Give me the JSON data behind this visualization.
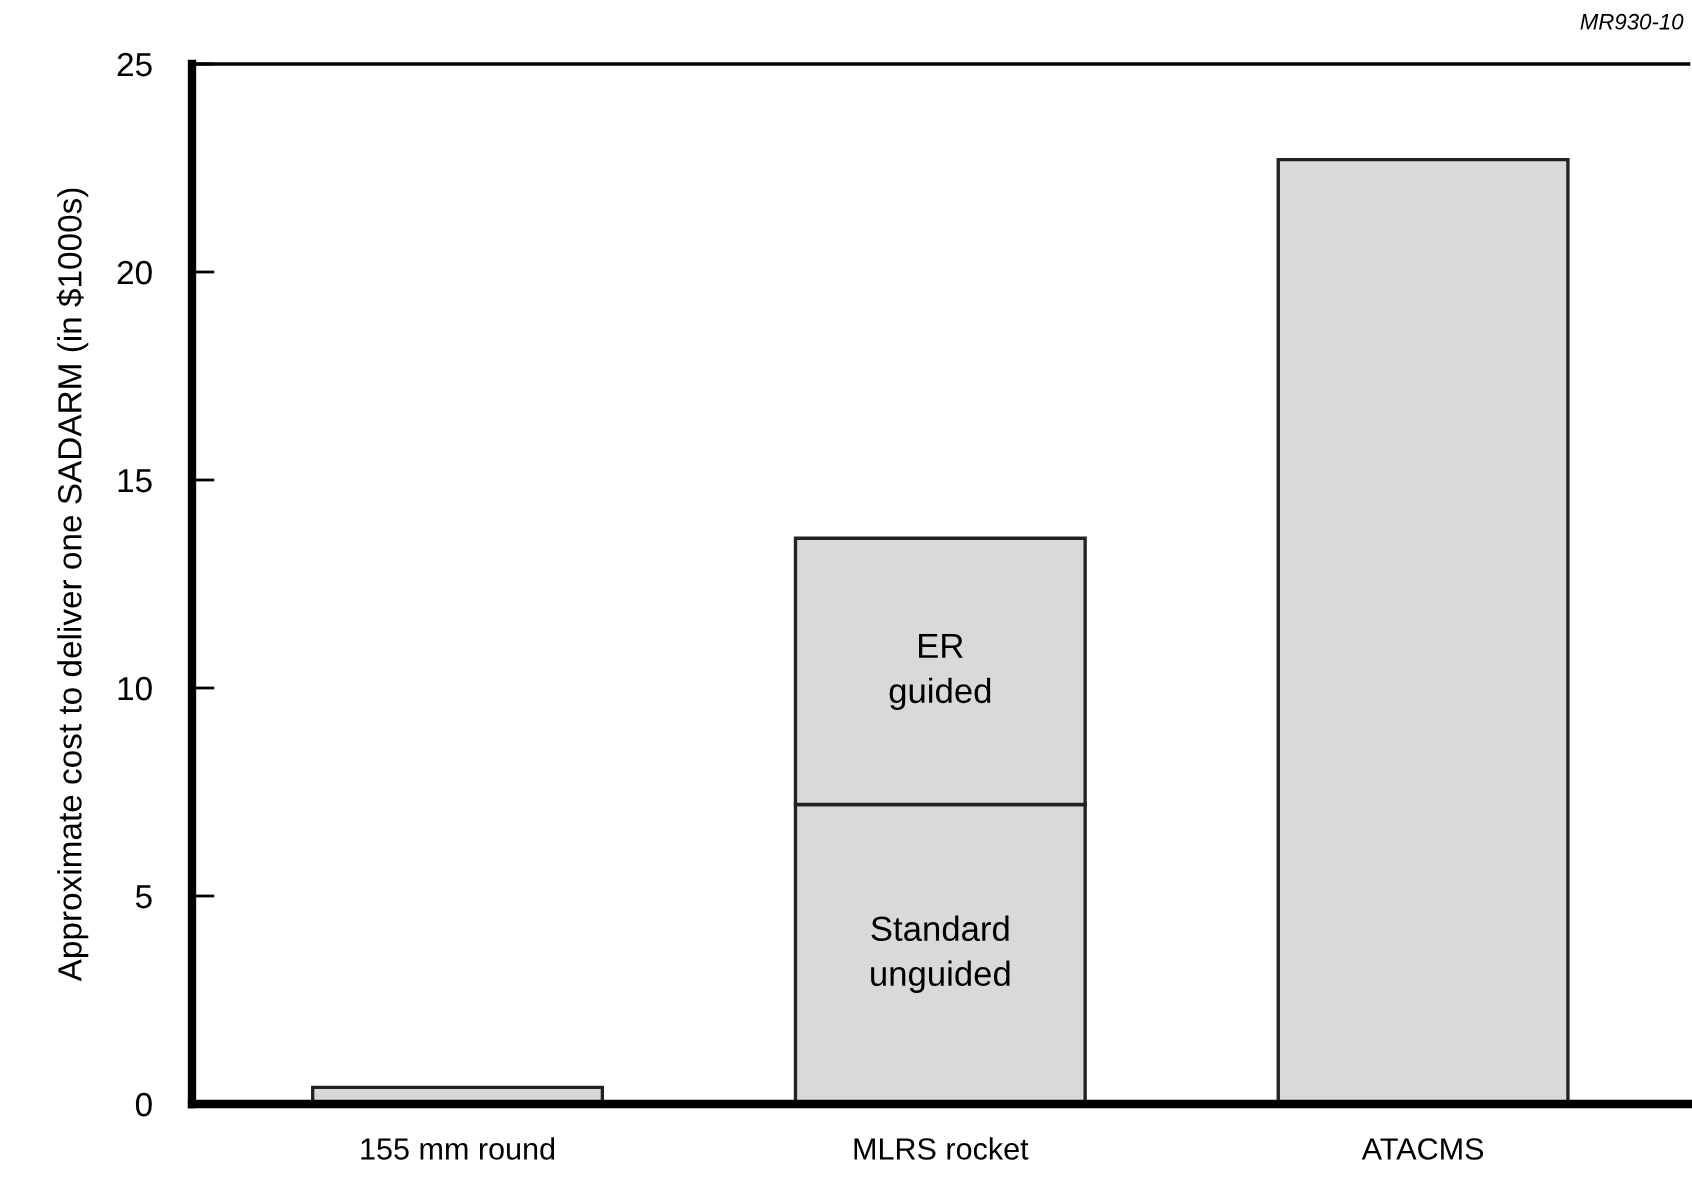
{
  "chart_data": {
    "type": "bar",
    "stacked": true,
    "ylabel": "Approximate cost to deliver one SADARM (in $1000s)",
    "categories": [
      "155 mm round",
      "MLRS rocket",
      "ATACMS"
    ],
    "series": [
      {
        "name": "Standard unguided",
        "color": "#d9d9d9",
        "values": [
          0.4,
          7.2,
          22.7
        ]
      },
      {
        "name": "ER guided",
        "color": "#d9d9d9",
        "values": [
          null,
          6.4,
          null
        ]
      }
    ],
    "ylim": [
      0,
      25
    ],
    "yticks": [
      0,
      5,
      10,
      15,
      20,
      25
    ],
    "grid": false,
    "legend": false,
    "annotations": [
      "MR930-10"
    ]
  }
}
